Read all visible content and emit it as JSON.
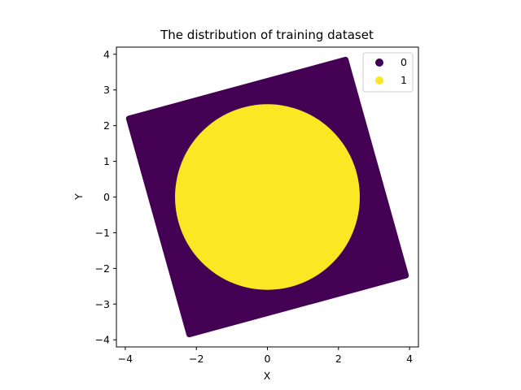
{
  "chart_data": {
    "type": "scatter",
    "title": "The distribution of training dataset",
    "xlabel": "X",
    "ylabel": "Y",
    "xlim": [
      -4.25,
      4.25
    ],
    "ylim": [
      -4.2,
      4.2
    ],
    "xticks": [
      -4,
      -2,
      0,
      2,
      4
    ],
    "yticks": [
      -4,
      -3,
      -2,
      -1,
      0,
      1,
      2,
      3,
      4
    ],
    "legend_position": "top-right",
    "series": [
      {
        "name": "0",
        "color": "#440154",
        "shape": "rotated-square",
        "corners": [
          [
            2.2,
            3.85
          ],
          [
            3.9,
            -2.2
          ],
          [
            -2.2,
            -3.85
          ],
          [
            -3.9,
            2.2
          ]
        ]
      },
      {
        "name": "1",
        "color": "#fde725",
        "shape": "disk",
        "center": [
          0,
          0
        ],
        "radius": 2.6
      }
    ],
    "grid": false
  }
}
